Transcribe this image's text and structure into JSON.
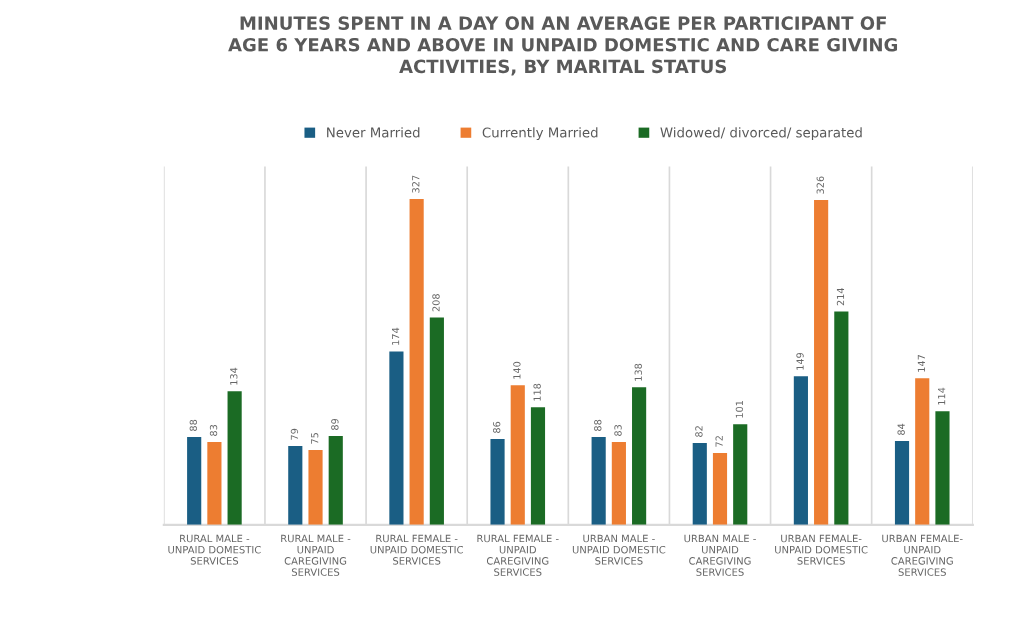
{
  "chart_data": {
    "type": "bar",
    "title": "MINUTES SPENT IN A DAY ON AN AVERAGE PER PARTICIPANT OF AGE 6 YEARS AND ABOVE IN UNPAID DOMESTIC AND CARE GIVING ACTIVITIES, BY MARITAL STATUS",
    "categories": [
      "RURAL MALE - UNPAID DOMESTIC SERVICES",
      "RURAL MALE - UNPAID CAREGIVING SERVICES",
      "RURAL FEMALE - UNPAID DOMESTIC SERVICES",
      "RURAL FEMALE - UNPAID CAREGIVING SERVICES",
      "URBAN MALE - UNPAID DOMESTIC SERVICES",
      "URBAN MALE - UNPAID CAREGIVING SERVICES",
      "URBAN FEMALE- UNPAID DOMESTIC SERVICES",
      "URBAN FEMALE- UNPAID CAREGIVING SERVICES"
    ],
    "series": [
      {
        "name": "Never Married",
        "color": "#1a5e84",
        "values": [
          88,
          79,
          174,
          86,
          88,
          82,
          149,
          84
        ]
      },
      {
        "name": "Currently Married",
        "color": "#ed7d31",
        "values": [
          83,
          75,
          327,
          140,
          83,
          72,
          326,
          147
        ]
      },
      {
        "name": "Widowed/ divorced/ separated",
        "color": "#1b6b24",
        "values": [
          134,
          89,
          208,
          118,
          138,
          101,
          214,
          114
        ]
      }
    ],
    "data_labels": true,
    "grid": "x",
    "legend": "top"
  }
}
